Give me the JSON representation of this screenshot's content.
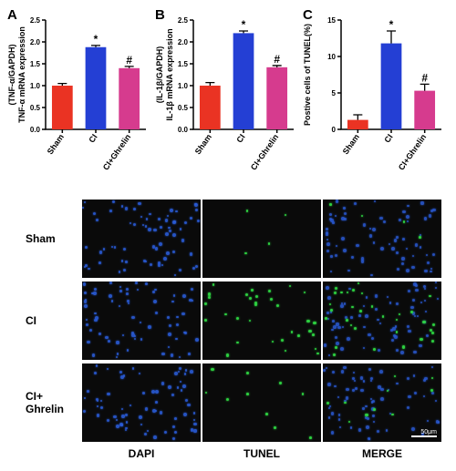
{
  "chartA": {
    "letter": "A",
    "ylabel": "TNF-α mRNA expression\n(TNF-α/GAPDH)",
    "ymax": 2.5,
    "ytick": 0.5,
    "categories": [
      "Sham",
      "CI",
      "CI+Ghrelin"
    ],
    "values": [
      1.0,
      1.88,
      1.4
    ],
    "errors": [
      0.05,
      0.04,
      0.04
    ],
    "colors": [
      "#ea3323",
      "#243fd4",
      "#d63b8e"
    ],
    "sig": [
      "",
      "*",
      "#"
    ],
    "label_fontsize": 9,
    "tick_fontsize": 8
  },
  "chartB": {
    "letter": "B",
    "ylabel": "IL-1β mRNA expression\n(IL-1β/GAPDH)",
    "ymax": 2.5,
    "ytick": 0.5,
    "categories": [
      "Sham",
      "CI",
      "CI+Ghrelin"
    ],
    "values": [
      1.0,
      2.2,
      1.42
    ],
    "errors": [
      0.07,
      0.05,
      0.04
    ],
    "colors": [
      "#ea3323",
      "#243fd4",
      "#d63b8e"
    ],
    "sig": [
      "",
      "*",
      "#"
    ],
    "label_fontsize": 9,
    "tick_fontsize": 8
  },
  "chartC": {
    "letter": "C",
    "ylabel": "Postive cells of TUNEL(%)",
    "ymax": 15,
    "ytick": 5,
    "categories": [
      "Sham",
      "CI",
      "CI+Ghrelin"
    ],
    "values": [
      1.3,
      11.8,
      5.3
    ],
    "errors": [
      0.7,
      1.7,
      0.9
    ],
    "colors": [
      "#ea3323",
      "#243fd4",
      "#d63b8e"
    ],
    "sig": [
      "",
      "*",
      "#"
    ],
    "label_fontsize": 9,
    "tick_fontsize": 8
  },
  "grid": {
    "row_labels": [
      "Sham",
      "CI",
      "CI+\nGhrelin"
    ],
    "col_labels": [
      "DAPI",
      "TUNEL",
      "MERGE"
    ],
    "scale_text": "50μm",
    "dapi_color": "#2a5bd6",
    "tunel_color": "#2fd943",
    "bg_color": "#0a0a0a",
    "dapi_density": 70,
    "tunel_density": {
      "Sham": 4,
      "CI": 32,
      "CI+Ghrelin": 10
    }
  }
}
